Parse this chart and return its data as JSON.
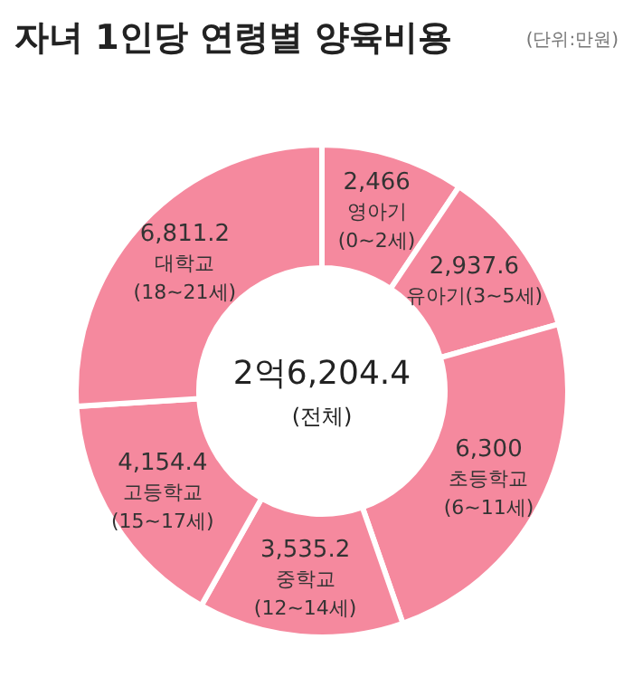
{
  "chart_data": {
    "type": "donut",
    "title": "자녀 1인당 연령별 양육비용",
    "subtitle": "(단위:만원)",
    "categories": [
      "영아기 (0~2세)",
      "유아기(3~5세)",
      "초등학교 (6~11세)",
      "중학교 (12~14세)",
      "고등학교 (15~17세)",
      "대학교 (18~21세)"
    ],
    "values": [
      2466,
      2937.6,
      6300,
      3535.2,
      4154.4,
      6811.2
    ],
    "value_labels": [
      "2,466",
      "2,937.6",
      "6,300",
      "3,535.2",
      "4,154.4",
      "6,811.2"
    ],
    "colors": [
      "#f5899e",
      "#f5899e",
      "#f5899e",
      "#f5899e",
      "#f5899e",
      "#f5899e"
    ],
    "annotations": [
      "2억6,204.4",
      "(전체)"
    ]
  }
}
